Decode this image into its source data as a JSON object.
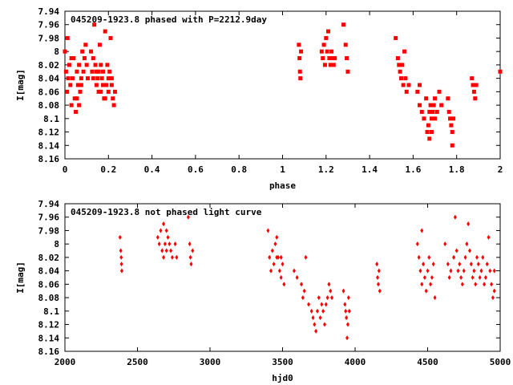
{
  "chart_data": [
    {
      "type": "scatter",
      "title": "045209-1923.8 phased with P=2212.9day",
      "xlabel": "phase",
      "ylabel": "I[mag]",
      "xlim": [
        0,
        2
      ],
      "ylim": [
        8.16,
        7.94
      ],
      "y_inverted": true,
      "xticks": [
        0,
        0.2,
        0.4,
        0.6,
        0.8,
        1,
        1.2,
        1.4,
        1.6,
        1.8,
        2
      ],
      "xtick_labels": [
        "0",
        "0.2",
        "0.4",
        "0.6",
        "0.8",
        "1",
        "1.2",
        "1.4",
        "1.6",
        "1.8",
        "2"
      ],
      "yticks": [
        7.94,
        7.96,
        7.98,
        8.0,
        8.02,
        8.04,
        8.06,
        8.08,
        8.1,
        8.12,
        8.14,
        8.16
      ],
      "ytick_labels": [
        "7.94",
        "7.96",
        "7.98",
        "8",
        "8.02",
        "8.04",
        "8.06",
        "8.08",
        "8.1",
        "8.12",
        "8.14",
        "8.16"
      ],
      "marker_color": "#ff0000",
      "series": [
        {
          "points": [
            [
              0.0,
              8.0
            ],
            [
              0.005,
              8.03
            ],
            [
              0.01,
              8.06
            ],
            [
              0.015,
              8.04
            ],
            [
              0.02,
              8.02
            ],
            [
              0.025,
              8.05
            ],
            [
              0.03,
              8.08
            ],
            [
              0.035,
              8.04
            ],
            [
              0.04,
              8.01
            ],
            [
              0.045,
              8.07
            ],
            [
              0.05,
              8.09
            ],
            [
              0.055,
              8.03
            ],
            [
              0.06,
              8.05
            ],
            [
              0.065,
              8.02
            ],
            [
              0.07,
              8.06
            ],
            [
              0.075,
              8.04
            ],
            [
              0.08,
              8.0
            ],
            [
              0.085,
              8.03
            ],
            [
              0.09,
              8.01
            ],
            [
              0.095,
              7.99
            ],
            [
              0.1,
              8.02
            ],
            [
              0.105,
              8.04
            ],
            [
              0.012,
              7.98
            ],
            [
              0.03,
              8.01
            ],
            [
              0.055,
              8.07
            ],
            [
              0.065,
              8.08
            ],
            [
              0.075,
              8.05
            ],
            [
              0.12,
              8.0
            ],
            [
              0.125,
              8.03
            ],
            [
              0.13,
              8.04
            ],
            [
              0.135,
              7.96
            ],
            [
              0.14,
              8.02
            ],
            [
              0.145,
              8.05
            ],
            [
              0.15,
              8.04
            ],
            [
              0.155,
              8.03
            ],
            [
              0.16,
              7.99
            ],
            [
              0.165,
              8.06
            ],
            [
              0.17,
              8.04
            ],
            [
              0.175,
              8.03
            ],
            [
              0.18,
              8.07
            ],
            [
              0.185,
              7.97
            ],
            [
              0.19,
              8.05
            ],
            [
              0.195,
              8.02
            ],
            [
              0.2,
              8.04
            ],
            [
              0.205,
              8.03
            ],
            [
              0.21,
              7.98
            ],
            [
              0.215,
              8.05
            ],
            [
              0.22,
              8.07
            ],
            [
              0.225,
              8.08
            ],
            [
              0.23,
              8.06
            ],
            [
              0.13,
              8.01
            ],
            [
              0.145,
              8.03
            ],
            [
              0.155,
              8.06
            ],
            [
              0.165,
              8.02
            ],
            [
              0.175,
              8.05
            ],
            [
              0.185,
              8.07
            ],
            [
              0.2,
              8.06
            ],
            [
              0.215,
              8.04
            ],
            [
              1.075,
              7.99
            ],
            [
              1.078,
              8.01
            ],
            [
              1.08,
              8.03
            ],
            [
              1.082,
              8.04
            ],
            [
              1.085,
              8.0
            ],
            [
              1.18,
              8.0
            ],
            [
              1.185,
              8.01
            ],
            [
              1.19,
              7.99
            ],
            [
              1.195,
              8.02
            ],
            [
              1.2,
              7.98
            ],
            [
              1.205,
              8.0
            ],
            [
              1.21,
              7.97
            ],
            [
              1.215,
              8.01
            ],
            [
              1.22,
              8.02
            ],
            [
              1.225,
              8.0
            ],
            [
              1.23,
              8.01
            ],
            [
              1.235,
              8.02
            ],
            [
              1.24,
              8.01
            ],
            [
              1.28,
              7.96
            ],
            [
              1.29,
              7.99
            ],
            [
              1.295,
              8.01
            ],
            [
              1.3,
              8.03
            ],
            [
              1.52,
              7.98
            ],
            [
              1.53,
              8.01
            ],
            [
              1.535,
              8.02
            ],
            [
              1.54,
              8.03
            ],
            [
              1.545,
              8.04
            ],
            [
              1.55,
              8.02
            ],
            [
              1.555,
              8.05
            ],
            [
              1.56,
              8.0
            ],
            [
              1.565,
              8.04
            ],
            [
              1.57,
              8.06
            ],
            [
              1.58,
              8.05
            ],
            [
              1.62,
              8.06
            ],
            [
              1.63,
              8.08
            ],
            [
              1.64,
              8.09
            ],
            [
              1.65,
              8.1
            ],
            [
              1.66,
              8.07
            ],
            [
              1.665,
              8.12
            ],
            [
              1.67,
              8.11
            ],
            [
              1.675,
              8.13
            ],
            [
              1.68,
              8.08
            ],
            [
              1.685,
              8.1
            ],
            [
              1.69,
              8.09
            ],
            [
              1.695,
              8.08
            ],
            [
              1.7,
              8.1
            ],
            [
              1.71,
              8.09
            ],
            [
              1.72,
              8.06
            ],
            [
              1.73,
              8.08
            ],
            [
              1.63,
              8.05
            ],
            [
              1.675,
              8.09
            ],
            [
              1.685,
              8.12
            ],
            [
              1.7,
              8.07
            ],
            [
              1.76,
              8.07
            ],
            [
              1.765,
              8.09
            ],
            [
              1.77,
              8.1
            ],
            [
              1.775,
              8.11
            ],
            [
              1.78,
              8.12
            ],
            [
              1.785,
              8.1
            ],
            [
              1.78,
              8.14
            ],
            [
              1.87,
              8.04
            ],
            [
              1.875,
              8.05
            ],
            [
              1.88,
              8.06
            ],
            [
              1.885,
              8.07
            ],
            [
              1.89,
              8.05
            ],
            [
              2.0,
              8.03
            ]
          ]
        }
      ]
    },
    {
      "type": "scatter",
      "title": "045209-1923.8 not phased light curve",
      "xlabel": "hjd0",
      "ylabel": "I[mag]",
      "xlim": [
        2000,
        5000
      ],
      "ylim": [
        8.16,
        7.94
      ],
      "y_inverted": true,
      "xticks": [
        2000,
        2500,
        3000,
        3500,
        4000,
        4500,
        5000
      ],
      "xtick_labels": [
        "2000",
        "2500",
        "3000",
        "3500",
        "4000",
        "4500",
        "5000"
      ],
      "yticks": [
        7.94,
        7.96,
        7.98,
        8.0,
        8.02,
        8.04,
        8.06,
        8.08,
        8.1,
        8.12,
        8.14,
        8.16
      ],
      "ytick_labels": [
        "7.94",
        "7.96",
        "7.98",
        "8",
        "8.02",
        "8.04",
        "8.06",
        "8.08",
        "8.1",
        "8.12",
        "8.14",
        "8.16"
      ],
      "marker_color": "#ff0000",
      "series": [
        {
          "points": [
            [
              2380,
              7.99
            ],
            [
              2385,
              8.01
            ],
            [
              2388,
              8.02
            ],
            [
              2390,
              8.03
            ],
            [
              2392,
              8.04
            ],
            [
              2640,
              7.99
            ],
            [
              2650,
              8.0
            ],
            [
              2660,
              7.98
            ],
            [
              2670,
              8.01
            ],
            [
              2680,
              7.97
            ],
            [
              2690,
              8.0
            ],
            [
              2700,
              8.01
            ],
            [
              2710,
              7.99
            ],
            [
              2720,
              8.0
            ],
            [
              2730,
              8.01
            ],
            [
              2740,
              8.02
            ],
            [
              2760,
              8.0
            ],
            [
              2770,
              8.02
            ],
            [
              2680,
              8.02
            ],
            [
              2700,
              7.98
            ],
            [
              2850,
              7.96
            ],
            [
              2860,
              8.0
            ],
            [
              2865,
              8.02
            ],
            [
              2870,
              8.03
            ],
            [
              2880,
              8.01
            ],
            [
              3400,
              7.98
            ],
            [
              3410,
              8.02
            ],
            [
              3420,
              8.04
            ],
            [
              3430,
              8.01
            ],
            [
              3440,
              8.03
            ],
            [
              3450,
              8.0
            ],
            [
              3460,
              7.99
            ],
            [
              3470,
              8.02
            ],
            [
              3480,
              8.04
            ],
            [
              3490,
              8.05
            ],
            [
              3500,
              8.03
            ],
            [
              3510,
              8.06
            ],
            [
              3460,
              8.02
            ],
            [
              3490,
              8.02
            ],
            [
              3580,
              8.04
            ],
            [
              3600,
              8.05
            ],
            [
              3630,
              8.06
            ],
            [
              3640,
              8.08
            ],
            [
              3650,
              8.07
            ],
            [
              3660,
              8.02
            ],
            [
              3680,
              8.09
            ],
            [
              3700,
              8.1
            ],
            [
              3710,
              8.11
            ],
            [
              3720,
              8.12
            ],
            [
              3730,
              8.13
            ],
            [
              3740,
              8.1
            ],
            [
              3750,
              8.08
            ],
            [
              3760,
              8.11
            ],
            [
              3770,
              8.09
            ],
            [
              3780,
              8.1
            ],
            [
              3790,
              8.12
            ],
            [
              3800,
              8.09
            ],
            [
              3810,
              8.08
            ],
            [
              3820,
              8.06
            ],
            [
              3830,
              8.07
            ],
            [
              3840,
              8.08
            ],
            [
              3920,
              8.07
            ],
            [
              3930,
              8.09
            ],
            [
              3935,
              8.1
            ],
            [
              3940,
              8.11
            ],
            [
              3945,
              8.14
            ],
            [
              3950,
              8.12
            ],
            [
              3955,
              8.08
            ],
            [
              3960,
              8.1
            ],
            [
              4150,
              8.03
            ],
            [
              4155,
              8.05
            ],
            [
              4160,
              8.06
            ],
            [
              4165,
              8.04
            ],
            [
              4170,
              8.07
            ],
            [
              4430,
              8.0
            ],
            [
              4440,
              8.02
            ],
            [
              4450,
              8.04
            ],
            [
              4460,
              8.06
            ],
            [
              4470,
              8.03
            ],
            [
              4480,
              8.05
            ],
            [
              4490,
              8.07
            ],
            [
              4500,
              8.04
            ],
            [
              4510,
              8.02
            ],
            [
              4520,
              8.06
            ],
            [
              4530,
              8.05
            ],
            [
              4540,
              8.03
            ],
            [
              4550,
              8.08
            ],
            [
              4460,
              7.98
            ],
            [
              4620,
              8.0
            ],
            [
              4640,
              8.03
            ],
            [
              4650,
              8.05
            ],
            [
              4660,
              8.04
            ],
            [
              4680,
              8.02
            ],
            [
              4690,
              7.96
            ],
            [
              4700,
              8.01
            ],
            [
              4710,
              8.04
            ],
            [
              4720,
              8.03
            ],
            [
              4730,
              8.05
            ],
            [
              4740,
              8.06
            ],
            [
              4750,
              8.04
            ],
            [
              4760,
              8.02
            ],
            [
              4770,
              8.0
            ],
            [
              4780,
              7.97
            ],
            [
              4790,
              8.01
            ],
            [
              4800,
              8.03
            ],
            [
              4810,
              8.05
            ],
            [
              4820,
              8.04
            ],
            [
              4830,
              8.06
            ],
            [
              4840,
              8.02
            ],
            [
              4850,
              8.03
            ],
            [
              4860,
              8.05
            ],
            [
              4870,
              8.04
            ],
            [
              4880,
              8.02
            ],
            [
              4890,
              8.06
            ],
            [
              4900,
              8.05
            ],
            [
              4910,
              8.03
            ],
            [
              4920,
              7.99
            ],
            [
              4930,
              8.04
            ],
            [
              4940,
              8.06
            ],
            [
              4950,
              8.08
            ],
            [
              4960,
              8.07
            ],
            [
              4960,
              8.04
            ]
          ]
        }
      ]
    }
  ]
}
